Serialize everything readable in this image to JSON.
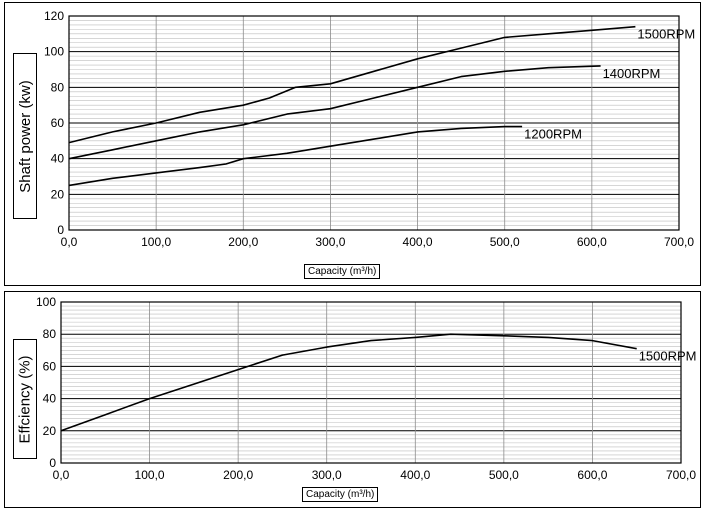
{
  "chart_data": [
    {
      "type": "line",
      "xlabel": "Capacity (m³/h)",
      "ylabel": "Shaft power (kw)",
      "xlim": [
        0,
        700
      ],
      "ylim": [
        0,
        120
      ],
      "x_ticks": [
        "0,0",
        "100,0",
        "200,0",
        "300,0",
        "400,0",
        "500,0",
        "600,0",
        "700,0"
      ],
      "y_ticks": [
        "0",
        "20",
        "40",
        "60",
        "80",
        "100",
        "120"
      ],
      "grid": true,
      "series": [
        {
          "name": "1500RPM",
          "x": [
            0,
            50,
            100,
            150,
            200,
            230,
            260,
            300,
            350,
            400,
            450,
            500,
            550,
            600,
            650
          ],
          "y": [
            49,
            55,
            60,
            66,
            70,
            74,
            80,
            82,
            89,
            96,
            102,
            108,
            110,
            112,
            114
          ]
        },
        {
          "name": "1400RPM",
          "x": [
            0,
            50,
            100,
            150,
            200,
            250,
            300,
            350,
            400,
            450,
            500,
            550,
            610
          ],
          "y": [
            40,
            45,
            50,
            55,
            59,
            65,
            68,
            74,
            80,
            86,
            89,
            91,
            92
          ]
        },
        {
          "name": "1200RPM",
          "x": [
            0,
            50,
            100,
            150,
            180,
            200,
            250,
            300,
            350,
            400,
            450,
            500,
            520
          ],
          "y": [
            25,
            29,
            32,
            35,
            37,
            40,
            43,
            47,
            51,
            55,
            57,
            58,
            58
          ]
        }
      ]
    },
    {
      "type": "line",
      "xlabel": "Capacity (m³/h)",
      "ylabel": "Effciency (%)",
      "xlim": [
        0,
        700
      ],
      "ylim": [
        0,
        100
      ],
      "x_ticks": [
        "0,0",
        "100,0",
        "200,0",
        "300,0",
        "400,0",
        "500,0",
        "600,0",
        "700,0"
      ],
      "y_ticks": [
        "0",
        "20",
        "40",
        "60",
        "80",
        "100"
      ],
      "grid": true,
      "series": [
        {
          "name": "1500RPM",
          "x": [
            0,
            50,
            100,
            150,
            200,
            250,
            300,
            350,
            400,
            440,
            500,
            550,
            600,
            650
          ],
          "y": [
            20,
            30,
            40,
            49,
            58,
            67,
            72,
            76,
            78,
            80,
            79,
            78,
            76,
            71
          ]
        }
      ]
    }
  ]
}
